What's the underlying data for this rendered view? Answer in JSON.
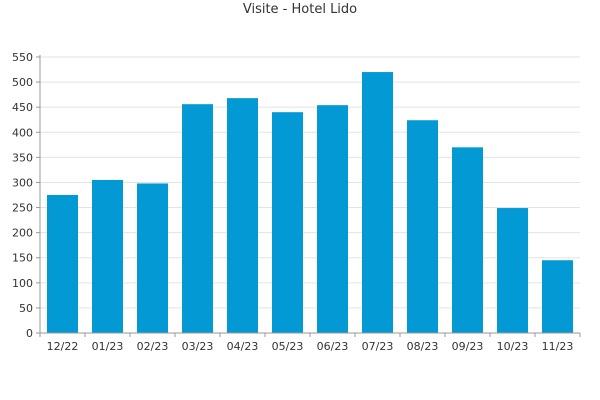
{
  "chart_data": {
    "type": "bar",
    "title": "Visite - Hotel Lido",
    "xlabel": "",
    "ylabel": "",
    "categories": [
      "12/22",
      "01/23",
      "02/23",
      "03/23",
      "04/23",
      "05/23",
      "06/23",
      "07/23",
      "08/23",
      "09/23",
      "10/23",
      "11/23"
    ],
    "values": [
      275,
      305,
      298,
      456,
      468,
      440,
      454,
      520,
      424,
      370,
      249,
      145
    ],
    "ylim": [
      0,
      550
    ],
    "yticks": [
      0,
      50,
      100,
      150,
      200,
      250,
      300,
      350,
      400,
      450,
      500,
      550
    ],
    "grid": true,
    "legend": "none",
    "bar_color": "#0399d4"
  }
}
